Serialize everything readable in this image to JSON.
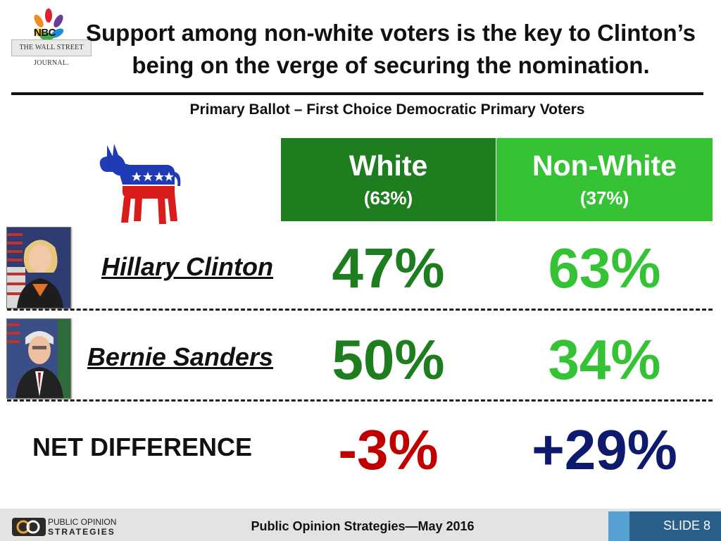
{
  "header": {
    "title_line1": "Support among non-white voters is the key to Clinton’s",
    "title_line2": "being on the verge of securing the nomination.",
    "subtitle": "Primary Ballot – First Choice Democratic Primary Voters",
    "nbc_logo_text": "NBC",
    "wsj_logo_text": "THE WALL STREET JOURNAL."
  },
  "columns": [
    {
      "label": "White",
      "share": "(63%)",
      "color": "#1e7d1e"
    },
    {
      "label": "Non-White",
      "share": "(37%)",
      "color": "#35c335"
    }
  ],
  "rows": [
    {
      "label": "Hillary Clinton",
      "values": [
        "47%",
        "63%"
      ]
    },
    {
      "label": "Bernie Sanders",
      "values": [
        "50%",
        "34%"
      ]
    },
    {
      "label": "NET DIFFERENCE",
      "values": [
        "-3%",
        "+29%"
      ]
    }
  ],
  "colors": {
    "white_col": "#1e7d1e",
    "nonwhite_col": "#35c335",
    "negative": "#c00000",
    "positive": "#0d1a6e",
    "democratic_blue": "#1f3bb5",
    "democratic_red": "#d91c1c"
  },
  "chart_data": {
    "type": "table",
    "title": "Support among non-white voters is the key to Clinton’s being on the verge of securing the nomination.",
    "subtitle": "Primary Ballot – First Choice Democratic Primary Voters",
    "columns": [
      "White (63%)",
      "Non-White (37%)"
    ],
    "series": [
      {
        "name": "Hillary Clinton",
        "values": [
          47,
          63
        ]
      },
      {
        "name": "Bernie Sanders",
        "values": [
          50,
          34
        ]
      },
      {
        "name": "NET DIFFERENCE",
        "values": [
          -3,
          29
        ]
      }
    ]
  },
  "footer": {
    "source": "Public Opinion Strategies—May 2016",
    "pos_line1": "PUBLIC OPINION",
    "pos_line2": "STRATEGIES",
    "slide_label": "SLIDE 8"
  }
}
